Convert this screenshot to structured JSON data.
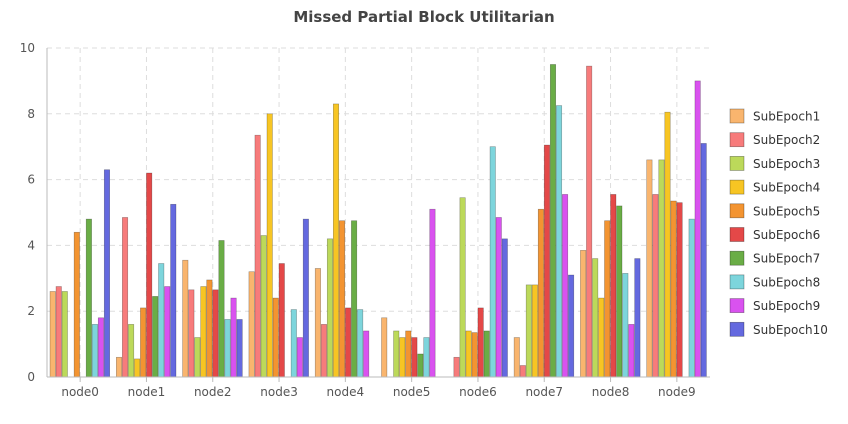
{
  "chart_data": {
    "type": "bar",
    "title": "Missed Partial Block Utilitarian",
    "xlabel": "",
    "ylabel": "",
    "ylim": [
      0,
      10
    ],
    "yticks": [
      0,
      2,
      4,
      6,
      8,
      10
    ],
    "grid": true,
    "legend_position": "right",
    "categories": [
      "node0",
      "node1",
      "node2",
      "node3",
      "node4",
      "node5",
      "node6",
      "node7",
      "node8",
      "node9"
    ],
    "series": [
      {
        "name": "SubEpoch1",
        "color": "#f9b56e",
        "values": [
          2.6,
          0.6,
          3.55,
          3.2,
          3.3,
          1.8,
          0.0,
          1.2,
          3.85,
          6.6
        ]
      },
      {
        "name": "SubEpoch2",
        "color": "#f77b7b",
        "values": [
          2.75,
          4.85,
          2.65,
          7.35,
          1.6,
          0.0,
          0.6,
          0.35,
          9.45,
          5.55
        ]
      },
      {
        "name": "SubEpoch3",
        "color": "#bcd95a",
        "values": [
          2.6,
          1.6,
          1.2,
          4.3,
          4.2,
          1.4,
          5.45,
          2.8,
          3.6,
          6.6
        ]
      },
      {
        "name": "SubEpoch4",
        "color": "#f7c523",
        "values": [
          0.0,
          0.55,
          2.75,
          8.0,
          8.3,
          1.2,
          1.4,
          2.8,
          2.4,
          8.05
        ]
      },
      {
        "name": "SubEpoch5",
        "color": "#f39431",
        "values": [
          4.4,
          2.1,
          2.95,
          2.4,
          4.75,
          1.4,
          1.35,
          5.1,
          4.75,
          5.35
        ]
      },
      {
        "name": "SubEpoch6",
        "color": "#e44848",
        "values": [
          0.0,
          6.2,
          2.65,
          3.45,
          2.1,
          1.2,
          2.1,
          7.05,
          5.55,
          5.3
        ]
      },
      {
        "name": "SubEpoch7",
        "color": "#6aad46",
        "values": [
          4.8,
          2.45,
          4.15,
          0.0,
          4.75,
          0.7,
          1.4,
          9.5,
          5.2,
          0.0
        ]
      },
      {
        "name": "SubEpoch8",
        "color": "#7dd5dc",
        "values": [
          1.6,
          3.45,
          1.75,
          2.05,
          2.05,
          1.2,
          7.0,
          8.25,
          3.15,
          4.8
        ]
      },
      {
        "name": "SubEpoch9",
        "color": "#d952ef",
        "values": [
          1.8,
          2.75,
          2.4,
          1.2,
          1.4,
          5.1,
          4.85,
          5.55,
          1.6,
          9.0
        ]
      },
      {
        "name": "SubEpoch10",
        "color": "#6469df",
        "values": [
          6.3,
          5.25,
          1.75,
          4.8,
          0.0,
          0.0,
          4.2,
          3.1,
          3.6,
          7.1
        ]
      }
    ]
  }
}
